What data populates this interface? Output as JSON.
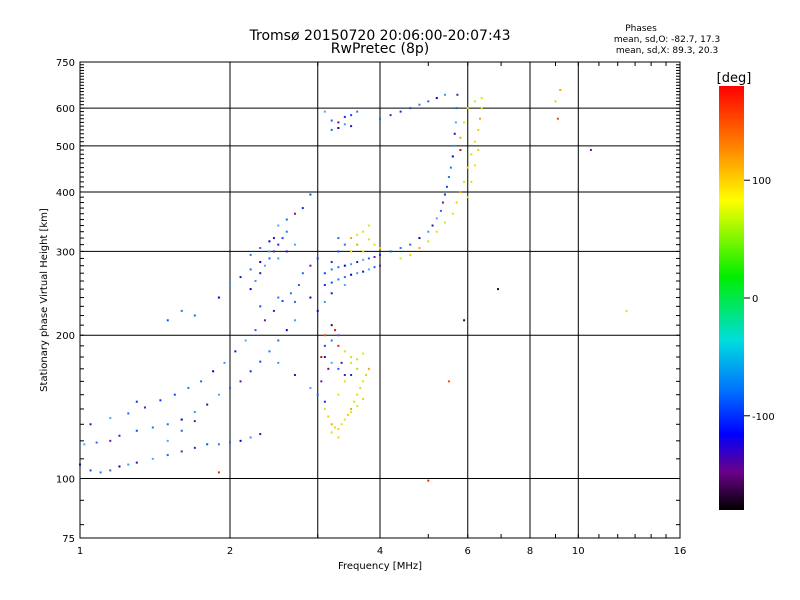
{
  "chart_data": {
    "type": "scatter",
    "title": "Tromsø 20150720 20:06:00-20:07:43",
    "subtitle": "RwPretec (8p)",
    "xlabel": "Frequency [MHz]",
    "ylabel": "Stationary phase Virtual Height [km]",
    "x_scale": "log",
    "y_scale": "log",
    "xlim": [
      1,
      16
    ],
    "ylim": [
      75,
      750
    ],
    "x_ticks": [
      1,
      2,
      4,
      6,
      8,
      10,
      16
    ],
    "y_ticks": [
      75,
      100,
      200,
      300,
      400,
      500,
      600,
      750
    ],
    "x_grid": [
      2,
      3,
      4,
      6,
      8,
      10
    ],
    "y_grid": [
      100,
      200,
      300,
      400,
      500,
      600
    ],
    "grid": true,
    "phase_box": {
      "title": "Phases",
      "line_o": "mean, sd,O: -82.7, 17.3",
      "line_x": "mean, sd,X:  89.3, 20.3"
    },
    "colorbar": {
      "title": "[deg]",
      "range": [
        -180,
        180
      ],
      "ticks": [
        100,
        0,
        -100
      ],
      "colormap": "rainbow"
    },
    "series": [
      {
        "points": [
          [
            1.0,
            107
          ],
          [
            1.05,
            104
          ],
          [
            1.1,
            103
          ],
          [
            1.15,
            104
          ],
          [
            1.2,
            106
          ],
          [
            1.25,
            107
          ],
          [
            1.3,
            108
          ],
          [
            1.4,
            110
          ],
          [
            1.5,
            112
          ],
          [
            1.6,
            114
          ],
          [
            1.7,
            116
          ],
          [
            1.8,
            118
          ],
          [
            1.9,
            118
          ],
          [
            2.0,
            119
          ],
          [
            2.1,
            120
          ],
          [
            2.2,
            122
          ],
          [
            2.3,
            124
          ],
          [
            1.02,
            118
          ],
          [
            1.08,
            119
          ],
          [
            1.15,
            120
          ],
          [
            1.2,
            123
          ],
          [
            1.3,
            126
          ],
          [
            1.4,
            128
          ],
          [
            1.5,
            130
          ],
          [
            1.6,
            133
          ],
          [
            1.7,
            138
          ],
          [
            1.8,
            143
          ],
          [
            1.9,
            150
          ],
          [
            2.0,
            155
          ],
          [
            2.1,
            160
          ],
          [
            2.2,
            168
          ],
          [
            2.3,
            176
          ],
          [
            2.4,
            185
          ],
          [
            2.5,
            195
          ],
          [
            2.6,
            205
          ],
          [
            2.7,
            215
          ],
          [
            1.05,
            130
          ],
          [
            1.15,
            134
          ],
          [
            1.25,
            137
          ],
          [
            1.35,
            141
          ],
          [
            1.45,
            146
          ],
          [
            1.55,
            150
          ],
          [
            1.65,
            155
          ],
          [
            1.75,
            160
          ],
          [
            1.85,
            168
          ],
          [
            1.95,
            175
          ],
          [
            2.05,
            185
          ],
          [
            2.15,
            195
          ],
          [
            2.25,
            205
          ],
          [
            2.35,
            215
          ],
          [
            2.45,
            225
          ],
          [
            2.55,
            236
          ],
          [
            2.65,
            245
          ],
          [
            2.75,
            255
          ],
          [
            2.2,
            250
          ],
          [
            2.25,
            260
          ],
          [
            2.3,
            270
          ],
          [
            2.35,
            280
          ],
          [
            2.4,
            290
          ],
          [
            2.45,
            300
          ],
          [
            2.5,
            310
          ],
          [
            2.55,
            320
          ],
          [
            2.6,
            330
          ],
          [
            2.2,
            275
          ],
          [
            2.3,
            285
          ],
          [
            2.4,
            300
          ],
          [
            2.45,
            320
          ],
          [
            2.5,
            340
          ],
          [
            2.6,
            350
          ],
          [
            2.7,
            360
          ],
          [
            2.8,
            370
          ],
          [
            2.9,
            395
          ],
          [
            2.2,
            295
          ],
          [
            2.3,
            305
          ],
          [
            2.4,
            315
          ],
          [
            2.5,
            290
          ],
          [
            2.6,
            300
          ],
          [
            2.7,
            310
          ],
          [
            2.8,
            270
          ],
          [
            2.9,
            280
          ],
          [
            3.0,
            290
          ],
          [
            1.5,
            215
          ],
          [
            1.6,
            225
          ],
          [
            1.7,
            220
          ],
          [
            1.9,
            240
          ],
          [
            2.0,
            255
          ],
          [
            2.1,
            265
          ],
          [
            1.5,
            120
          ],
          [
            1.6,
            126
          ],
          [
            1.7,
            132
          ],
          [
            1.3,
            145
          ],
          [
            2.3,
            230
          ],
          [
            2.5,
            240
          ],
          [
            2.7,
            235
          ],
          [
            2.9,
            240
          ],
          [
            2.5,
            175
          ],
          [
            2.7,
            165
          ],
          [
            2.9,
            155
          ],
          [
            3.0,
            150
          ],
          [
            3.05,
            160
          ],
          [
            3.1,
            145
          ],
          [
            3.1,
            270
          ],
          [
            3.2,
            275
          ],
          [
            3.3,
            278
          ],
          [
            3.4,
            280
          ],
          [
            3.5,
            282
          ],
          [
            3.6,
            285
          ],
          [
            3.7,
            288
          ],
          [
            3.8,
            290
          ],
          [
            3.9,
            292
          ],
          [
            4.0,
            295
          ],
          [
            4.2,
            300
          ],
          [
            4.4,
            305
          ],
          [
            4.6,
            310
          ],
          [
            4.8,
            320
          ],
          [
            5.0,
            330
          ],
          [
            5.1,
            340
          ],
          [
            5.2,
            352
          ],
          [
            5.3,
            365
          ],
          [
            5.35,
            380
          ],
          [
            5.4,
            395
          ],
          [
            5.45,
            410
          ],
          [
            5.5,
            430
          ],
          [
            5.55,
            450
          ],
          [
            5.6,
            475
          ],
          [
            5.62,
            500
          ],
          [
            5.65,
            530
          ],
          [
            5.68,
            560
          ],
          [
            5.7,
            600
          ],
          [
            5.72,
            640
          ],
          [
            3.1,
            255
          ],
          [
            3.2,
            258
          ],
          [
            3.3,
            262
          ],
          [
            3.4,
            265
          ],
          [
            3.5,
            268
          ],
          [
            3.6,
            270
          ],
          [
            3.7,
            272
          ],
          [
            3.8,
            275
          ],
          [
            3.9,
            278
          ],
          [
            4.0,
            280
          ],
          [
            3.2,
            285
          ],
          [
            3.3,
            300
          ],
          [
            3.4,
            310
          ],
          [
            3.3,
            320
          ],
          [
            3.0,
            225
          ],
          [
            3.1,
            235
          ],
          [
            3.2,
            245
          ],
          [
            3.4,
            255
          ],
          [
            3.2,
            565
          ],
          [
            3.3,
            560
          ],
          [
            3.4,
            575
          ],
          [
            3.5,
            580
          ],
          [
            3.6,
            590
          ],
          [
            3.2,
            540
          ],
          [
            3.3,
            545
          ],
          [
            3.4,
            555
          ],
          [
            3.5,
            550
          ],
          [
            3.1,
            590
          ],
          [
            4.0,
            570
          ],
          [
            4.2,
            580
          ],
          [
            4.4,
            590
          ],
          [
            4.6,
            600
          ],
          [
            4.8,
            610
          ],
          [
            5.0,
            620
          ],
          [
            5.2,
            630
          ],
          [
            5.4,
            640
          ],
          [
            3.1,
            180
          ],
          [
            3.2,
            175
          ],
          [
            3.3,
            170
          ],
          [
            3.4,
            165
          ],
          [
            3.5,
            165
          ],
          [
            3.1,
            190
          ],
          [
            3.2,
            195
          ],
          [
            3.3,
            200
          ]
        ]
      },
      {
        "points": [
          [
            3.1,
            140
          ],
          [
            3.15,
            135
          ],
          [
            3.2,
            130
          ],
          [
            3.25,
            128
          ],
          [
            3.3,
            127
          ],
          [
            3.35,
            130
          ],
          [
            3.4,
            133
          ],
          [
            3.45,
            136
          ],
          [
            3.5,
            140
          ],
          [
            3.55,
            145
          ],
          [
            3.6,
            150
          ],
          [
            3.65,
            155
          ],
          [
            3.7,
            160
          ],
          [
            3.75,
            165
          ],
          [
            3.8,
            170
          ],
          [
            3.2,
            125
          ],
          [
            3.3,
            122
          ],
          [
            3.5,
            138
          ],
          [
            3.6,
            142
          ],
          [
            3.7,
            147
          ],
          [
            3.5,
            320
          ],
          [
            3.6,
            325
          ],
          [
            3.7,
            330
          ],
          [
            3.8,
            318
          ],
          [
            3.9,
            310
          ],
          [
            4.0,
            305
          ],
          [
            3.6,
            310
          ],
          [
            3.7,
            300
          ],
          [
            3.5,
            300
          ],
          [
            3.8,
            340
          ],
          [
            4.4,
            290
          ],
          [
            4.6,
            295
          ],
          [
            4.8,
            305
          ],
          [
            5.0,
            315
          ],
          [
            5.2,
            330
          ],
          [
            5.4,
            345
          ],
          [
            5.6,
            360
          ],
          [
            5.7,
            380
          ],
          [
            5.8,
            400
          ],
          [
            5.9,
            420
          ],
          [
            6.0,
            450
          ],
          [
            6.1,
            480
          ],
          [
            6.2,
            510
          ],
          [
            6.3,
            540
          ],
          [
            6.35,
            570
          ],
          [
            6.4,
            600
          ],
          [
            6.0,
            390
          ],
          [
            6.1,
            420
          ],
          [
            6.2,
            455
          ],
          [
            6.3,
            490
          ],
          [
            5.8,
            520
          ],
          [
            5.9,
            560
          ],
          [
            6.0,
            600
          ],
          [
            6.2,
            620
          ],
          [
            6.4,
            630
          ],
          [
            9.0,
            620
          ],
          [
            9.2,
            655
          ],
          [
            12.5,
            225
          ]
        ]
      },
      {
        "points": [
          [
            3.5,
            180
          ],
          [
            3.6,
            178
          ],
          [
            3.7,
            183
          ],
          [
            3.4,
            185
          ],
          [
            3.5,
            175
          ],
          [
            3.6,
            170
          ],
          [
            3.3,
            150
          ],
          [
            3.4,
            160
          ]
        ]
      },
      {
        "points": [
          [
            3.05,
            180
          ],
          [
            3.15,
            170
          ],
          [
            3.1,
            200
          ],
          [
            3.2,
            210
          ],
          [
            3.3,
            190
          ],
          [
            3.25,
            205
          ],
          [
            3.35,
            175
          ],
          [
            5.5,
            160
          ],
          [
            5.9,
            215
          ],
          [
            1.9,
            103
          ],
          [
            5.8,
            490
          ],
          [
            10.6,
            490
          ],
          [
            9.1,
            570
          ],
          [
            6.9,
            250
          ],
          [
            5.0,
            99
          ]
        ]
      }
    ]
  }
}
